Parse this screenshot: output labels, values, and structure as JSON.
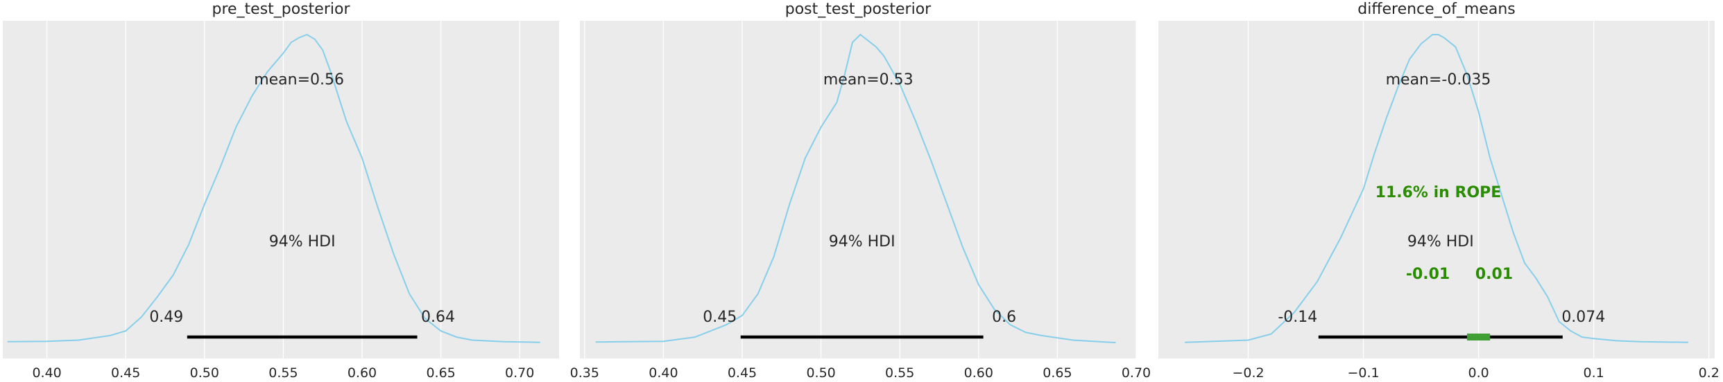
{
  "chart_data": [
    {
      "type": "line",
      "title": "pre_test_posterior",
      "xlim": [
        0.372,
        0.725
      ],
      "xticks": [
        "0.40",
        "0.45",
        "0.50",
        "0.55",
        "0.60",
        "0.65",
        "0.70"
      ],
      "xtick_values": [
        0.4,
        0.45,
        0.5,
        0.55,
        0.6,
        0.65,
        0.7
      ],
      "grid": true,
      "kde_color": "#87CEEB",
      "kde": {
        "x": [
          0.375,
          0.4,
          0.42,
          0.44,
          0.45,
          0.46,
          0.47,
          0.48,
          0.49,
          0.5,
          0.51,
          0.52,
          0.53,
          0.54,
          0.55,
          0.555,
          0.56,
          0.565,
          0.57,
          0.575,
          0.58,
          0.59,
          0.6,
          0.61,
          0.62,
          0.63,
          0.64,
          0.65,
          0.66,
          0.67,
          0.69,
          0.713
        ],
        "y": [
          0.005,
          0.006,
          0.01,
          0.025,
          0.04,
          0.085,
          0.15,
          0.22,
          0.32,
          0.45,
          0.57,
          0.7,
          0.8,
          0.88,
          0.94,
          0.975,
          0.99,
          1.0,
          0.985,
          0.95,
          0.88,
          0.72,
          0.6,
          0.44,
          0.29,
          0.16,
          0.08,
          0.04,
          0.02,
          0.01,
          0.005,
          0.003
        ]
      },
      "mean": 0.56,
      "mean_label": "mean=0.56",
      "hdi": [
        0.49,
        0.64
      ],
      "hdi_endpoints": [
        0.489,
        0.635
      ],
      "hdi_low_label": "0.49",
      "hdi_high_label": "0.64",
      "hdi_label": "94% HDI"
    },
    {
      "type": "line",
      "title": "post_test_posterior",
      "xlim": [
        0.347,
        0.7
      ],
      "xticks": [
        "0.35",
        "0.40",
        "0.45",
        "0.50",
        "0.55",
        "0.60",
        "0.65",
        "0.70"
      ],
      "xtick_values": [
        0.35,
        0.4,
        0.45,
        0.5,
        0.55,
        0.6,
        0.65,
        0.7
      ],
      "grid": true,
      "kde_color": "#87CEEB",
      "kde": {
        "x": [
          0.357,
          0.4,
          0.42,
          0.44,
          0.45,
          0.46,
          0.47,
          0.48,
          0.49,
          0.5,
          0.51,
          0.515,
          0.52,
          0.525,
          0.53,
          0.535,
          0.54,
          0.55,
          0.56,
          0.57,
          0.58,
          0.59,
          0.6,
          0.61,
          0.62,
          0.63,
          0.64,
          0.66,
          0.687
        ],
        "y": [
          0.004,
          0.006,
          0.02,
          0.06,
          0.09,
          0.16,
          0.28,
          0.45,
          0.6,
          0.7,
          0.78,
          0.87,
          0.975,
          1.0,
          0.98,
          0.96,
          0.93,
          0.84,
          0.72,
          0.59,
          0.45,
          0.31,
          0.19,
          0.11,
          0.06,
          0.035,
          0.025,
          0.01,
          0.002
        ]
      },
      "mean": 0.53,
      "mean_label": "mean=0.53",
      "hdi": [
        0.45,
        0.6
      ],
      "hdi_endpoints": [
        0.449,
        0.603
      ],
      "hdi_low_label": "0.45",
      "hdi_high_label": "0.6",
      "hdi_label": "94% HDI"
    },
    {
      "type": "line",
      "title": "difference_of_means",
      "xlim": [
        -0.278,
        0.205
      ],
      "xticks": [
        "−0.2",
        "−0.1",
        "0.0",
        "0.1",
        "0.2"
      ],
      "xtick_values": [
        -0.2,
        -0.1,
        0.0,
        0.1,
        0.2
      ],
      "grid": true,
      "kde_color": "#87CEEB",
      "kde": {
        "x": [
          -0.255,
          -0.2,
          -0.18,
          -0.16,
          -0.14,
          -0.12,
          -0.1,
          -0.09,
          -0.08,
          -0.07,
          -0.06,
          -0.05,
          -0.04,
          -0.035,
          -0.03,
          -0.02,
          -0.01,
          0.0,
          0.01,
          0.02,
          0.03,
          0.04,
          0.05,
          0.06,
          0.07,
          0.08,
          0.09,
          0.1,
          0.12,
          0.14,
          0.182
        ],
        "y": [
          0.003,
          0.01,
          0.03,
          0.1,
          0.2,
          0.34,
          0.5,
          0.62,
          0.73,
          0.83,
          0.92,
          0.97,
          1.0,
          1.0,
          0.99,
          0.96,
          0.87,
          0.75,
          0.6,
          0.48,
          0.36,
          0.26,
          0.21,
          0.15,
          0.07,
          0.04,
          0.02,
          0.015,
          0.008,
          0.005,
          0.003
        ]
      },
      "mean": -0.035,
      "mean_label": "mean=-0.035",
      "hdi": [
        -0.14,
        0.074
      ],
      "hdi_endpoints": [
        -0.139,
        0.073
      ],
      "hdi_low_label": "-0.14",
      "hdi_high_label": "0.074",
      "hdi_label": "94% HDI",
      "rope": [
        -0.01,
        0.01
      ],
      "rope_low_label": "-0.01",
      "rope_high_label": "0.01",
      "rope_text": "11.6% in ROPE",
      "rope_color": "#2a8c00",
      "rope_bar_color": "#3f9f35"
    }
  ],
  "colors": {
    "panel_bg": "#ebebeb",
    "grid": "#ffffff",
    "hdi_bar": "#000000",
    "text": "#262626"
  }
}
